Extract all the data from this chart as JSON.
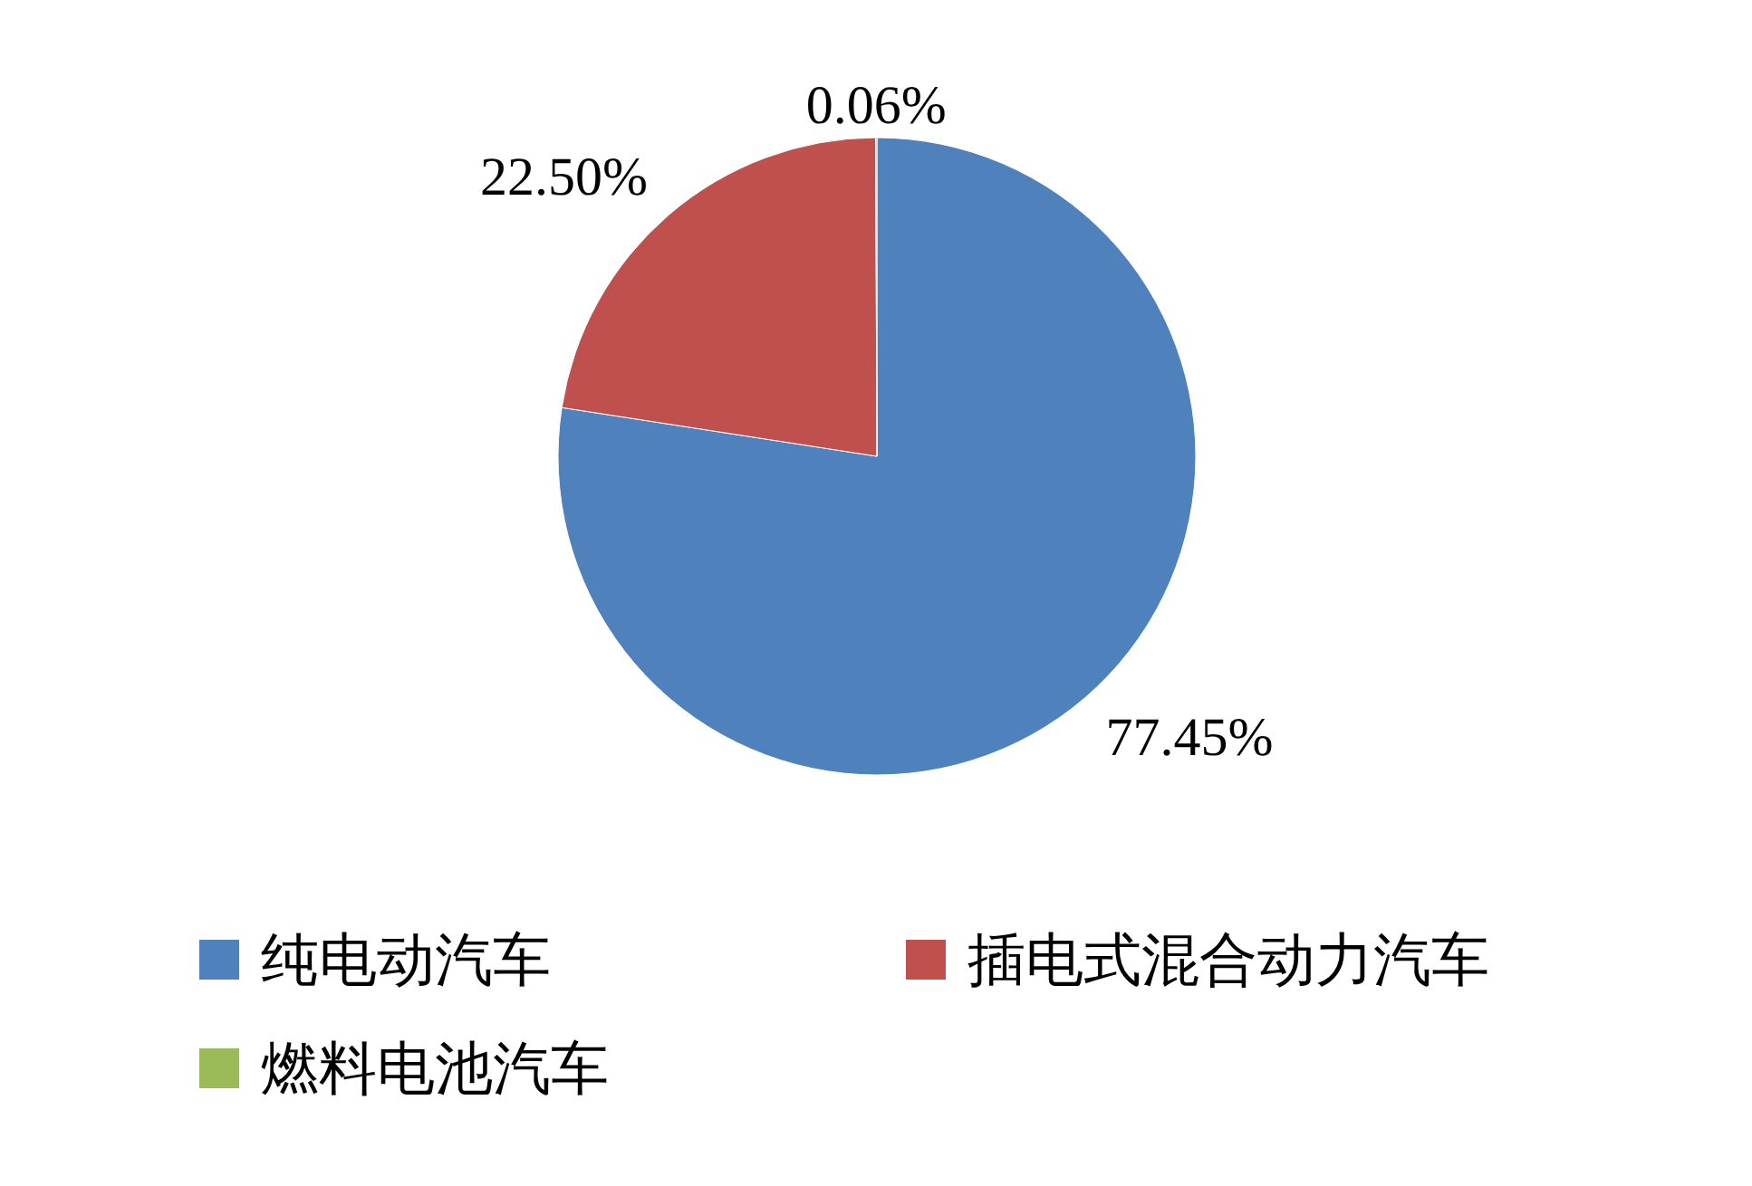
{
  "chart_data": {
    "type": "pie",
    "categories": [
      "纯电动汽车",
      "插电式混合动力汽车",
      "燃料电池汽车"
    ],
    "values": [
      77.45,
      22.5,
      0.06
    ],
    "colors": [
      "#4f81bd",
      "#c0504d",
      "#9bbb59"
    ],
    "value_labels": [
      "77.45%",
      "22.50%",
      "0.06%"
    ],
    "legend": "bottom"
  }
}
